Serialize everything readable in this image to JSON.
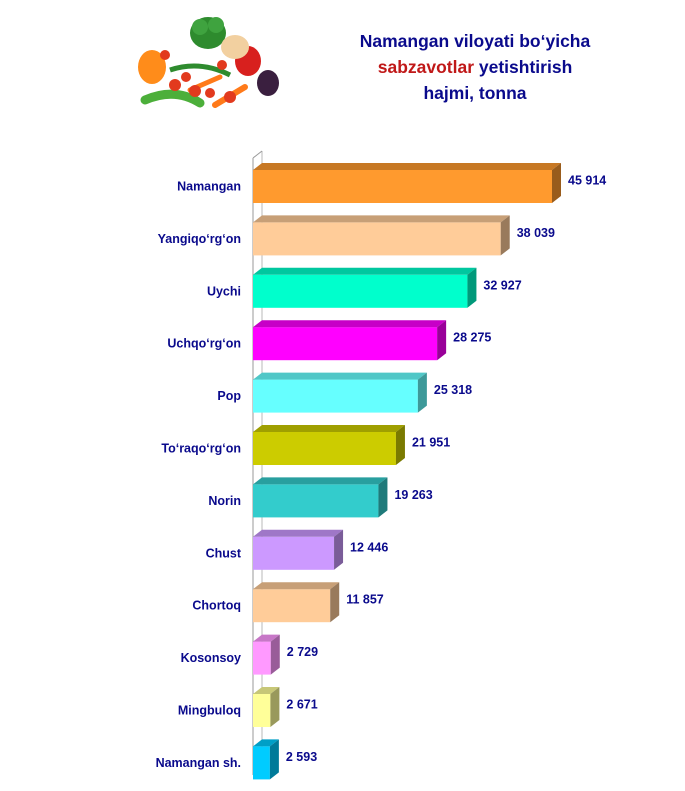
{
  "title": {
    "line1": "Namangan viloyati bo‘yicha",
    "line2_highlight": "sabzavotlar",
    "line2_rest": " yetishtirish",
    "line3": "hajmi, tonna",
    "color": "#0a0a8c",
    "highlight_color": "#c01818"
  },
  "image": {
    "subject": "vegetables"
  },
  "chart_data": {
    "type": "bar",
    "orientation": "horizontal",
    "categories": [
      "Namangan",
      "Yangiqo‘rg‘on",
      "Uychi",
      "Uchqo‘rg‘on",
      "Pop",
      "To‘raqo‘rg‘on",
      "Norin",
      "Chust",
      "Chortoq",
      "Kosonsoy",
      "Mingbuloq",
      "Namangan sh."
    ],
    "values": [
      45914,
      38039,
      32927,
      28275,
      25318,
      21951,
      19263,
      12446,
      11857,
      2729,
      2671,
      2593
    ],
    "value_labels": [
      "45 914",
      "38 039",
      "32 927",
      "28 275",
      "25 318",
      "21 951",
      "19 263",
      "12 446",
      "11 857",
      "2 729",
      "2 671",
      "2 593"
    ],
    "colors": [
      "#ff9a2e",
      "#ffcc99",
      "#00ffcc",
      "#ff00ff",
      "#66ffff",
      "#cccc00",
      "#33cccc",
      "#cc99ff",
      "#ffcc99",
      "#ff99ff",
      "#ffff99",
      "#00ccff"
    ],
    "title": "Namangan viloyati bo‘yicha sabzavotlar yetishtirish hajmi, tonna",
    "xlabel": "",
    "ylabel": "",
    "xlim": [
      0,
      50000
    ],
    "grid": false,
    "legend": false
  }
}
